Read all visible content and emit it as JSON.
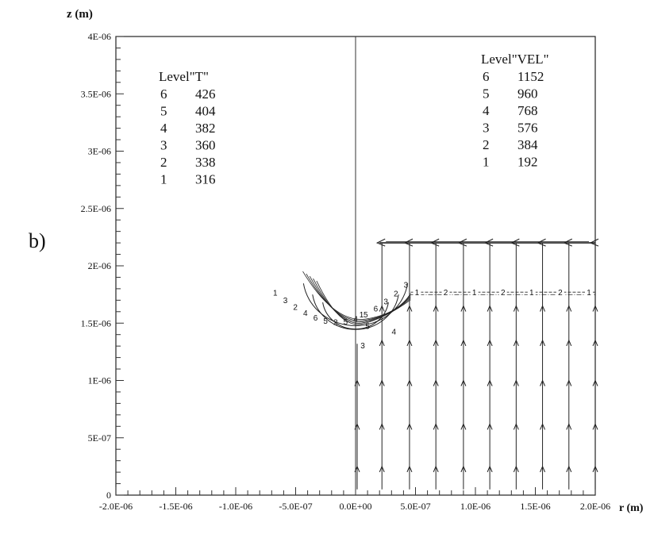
{
  "figure_label": "b)",
  "chart_data": {
    "type": "contour_vector_plot",
    "xlabel": "r (m)",
    "ylabel": "z (m)",
    "xlim": [
      -2e-06,
      2e-06
    ],
    "ylim": [
      0,
      4e-06
    ],
    "x_ticks": [
      "-2.0E-06",
      "-1.5E-06",
      "-1.0E-06",
      "-5.0E-07",
      "0.0E+00",
      "5.0E-07",
      "1.0E-06",
      "1.5E-06",
      "2.0E-06"
    ],
    "x_tick_values": [
      -2e-06,
      -1.5e-06,
      -1e-06,
      -5e-07,
      0,
      5e-07,
      1e-06,
      1.5e-06,
      2e-06
    ],
    "y_ticks": [
      "0",
      "5E-07",
      "1E-06",
      "1.5E-06",
      "2E-06",
      "2.5E-06",
      "3E-06",
      "3.5E-06",
      "4E-06"
    ],
    "y_tick_values": [
      0,
      5e-07,
      1e-06,
      1.5e-06,
      2e-06,
      2.5e-06,
      3e-06,
      3.5e-06,
      4e-06
    ],
    "legend_T": {
      "title": "Level\"T\"",
      "levels": [
        {
          "level": "6",
          "value": "426"
        },
        {
          "level": "5",
          "value": "404"
        },
        {
          "level": "4",
          "value": "382"
        },
        {
          "level": "3",
          "value": "360"
        },
        {
          "level": "2",
          "value": "338"
        },
        {
          "level": "1",
          "value": "316"
        }
      ]
    },
    "legend_VEL": {
      "title": "Level\"VEL\"",
      "levels": [
        {
          "level": "6",
          "value": "1152"
        },
        {
          "level": "5",
          "value": "960"
        },
        {
          "level": "4",
          "value": "768"
        },
        {
          "level": "3",
          "value": "576"
        },
        {
          "level": "2",
          "value": "384"
        },
        {
          "level": "1",
          "value": "192"
        }
      ]
    },
    "streamline_r": [
      0.0,
      2.2e-07,
      4.5e-07,
      6.7e-07,
      9e-07,
      1.12e-06,
      1.34e-06,
      1.56e-06,
      1.78e-06,
      2e-06
    ],
    "streamline_arrows_z": [
      2.5e-07,
      6.2e-07,
      1e-06,
      1.35e-06,
      1.65e-06
    ],
    "flat_contour_z": 1.77e-06,
    "flat_contour_labels": [
      "1",
      "2",
      "1",
      "2",
      "1",
      "2",
      "1"
    ],
    "top_flow_z": 2.2e-06,
    "top_flow_r": [
      2e-07,
      2e-06
    ],
    "droplet_contours": [
      {
        "label": "1",
        "radius": 4.6e-07,
        "center_z": 1.75e-06
      },
      {
        "label": "3",
        "radius": 3.8e-07,
        "center_z": 1.67e-06
      },
      {
        "label": "5",
        "radius": 2.9e-07,
        "center_z": 1.62e-06
      }
    ],
    "droplet_inline_labels": [
      "1",
      "3",
      "2",
      "4",
      "6",
      "5",
      "2",
      "5",
      "4",
      "5",
      "6",
      "3",
      "2",
      "3"
    ],
    "droplet_radial_labels": [
      "1",
      "5",
      "3",
      "4"
    ]
  }
}
